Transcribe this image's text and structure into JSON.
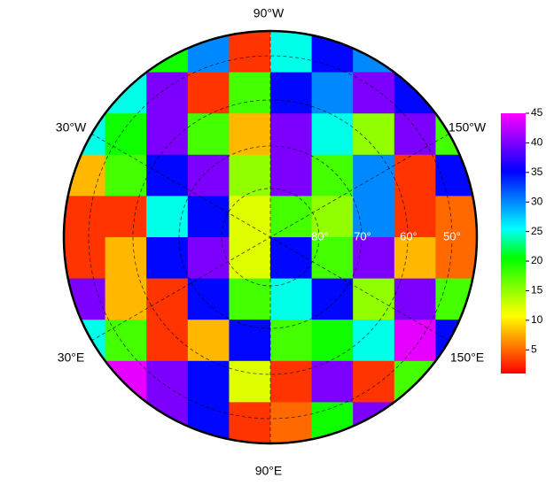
{
  "chart_data": {
    "type": "heatmap",
    "lon_labels": [
      "90°W",
      "30°W",
      "150°W",
      "30°E",
      "150°E",
      "90°E"
    ],
    "lat_labels": [
      "80°",
      "70°",
      "60°",
      "50°"
    ],
    "colormap": [
      "#ff0000",
      "#ff8000",
      "#ffff00",
      "#80ff00",
      "#00ff00",
      "#00ffff",
      "#0080ff",
      "#0000ff",
      "#8000ff",
      "#ff00ff"
    ],
    "clim": [
      1,
      45
    ],
    "cticks": [
      5,
      10,
      15,
      20,
      25,
      30,
      35,
      40,
      45
    ],
    "values": [
      [
        20,
        20,
        20,
        30,
        3,
        25,
        35,
        30,
        20,
        20
      ],
      [
        18,
        25,
        40,
        3,
        18,
        35,
        30,
        40,
        35,
        20
      ],
      [
        25,
        20,
        40,
        18,
        8,
        40,
        25,
        15,
        40,
        18
      ],
      [
        8,
        18,
        35,
        40,
        15,
        40,
        18,
        30,
        3,
        35
      ],
      [
        3,
        3,
        25,
        35,
        12,
        18,
        15,
        30,
        3,
        5
      ],
      [
        3,
        8,
        35,
        40,
        12,
        35,
        18,
        40,
        8,
        5
      ],
      [
        40,
        8,
        3,
        35,
        18,
        25,
        35,
        15,
        40,
        18
      ],
      [
        25,
        18,
        3,
        8,
        35,
        18,
        20,
        25,
        44,
        35
      ],
      [
        40,
        44,
        40,
        35,
        12,
        3,
        40,
        3,
        18,
        20
      ],
      [
        30,
        35,
        40,
        35,
        3,
        5,
        20,
        40,
        18,
        18
      ]
    ]
  }
}
